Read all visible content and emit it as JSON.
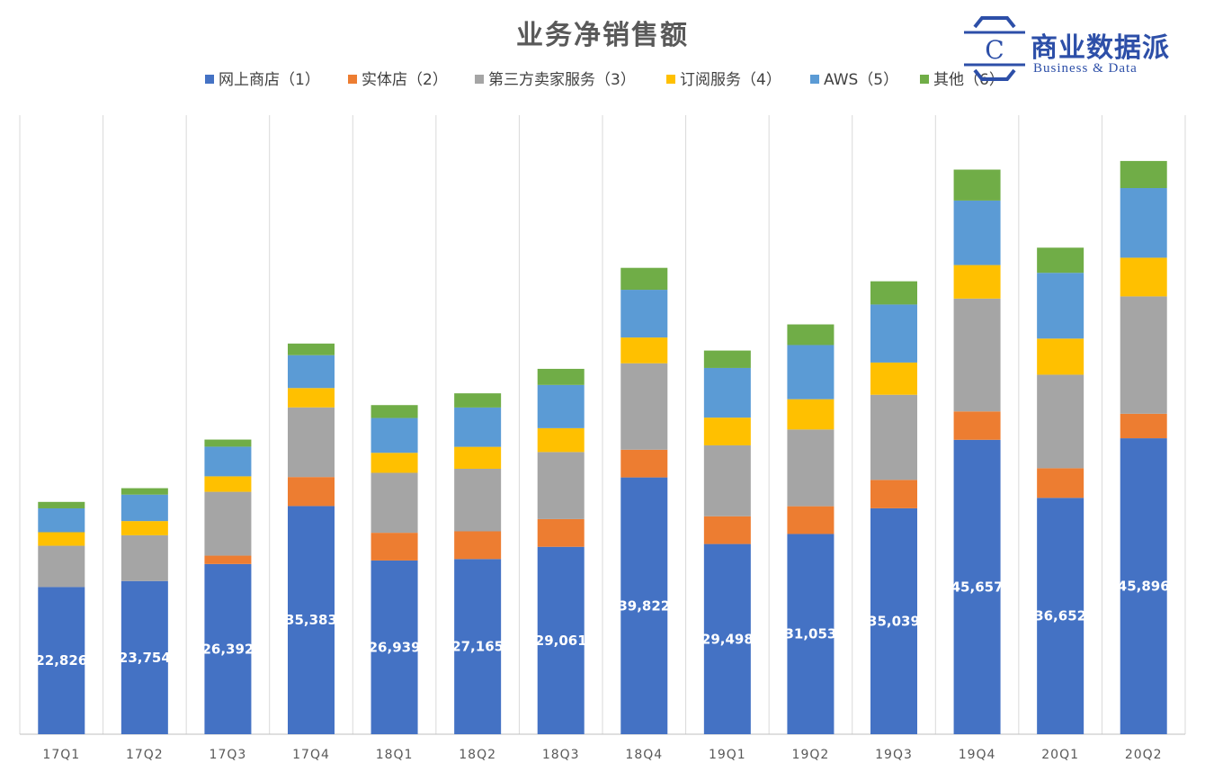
{
  "logo": {
    "name": "商业数据派",
    "tagline": "Business & Data",
    "mark": "C"
  },
  "chart_data": {
    "type": "bar",
    "stacked": true,
    "title": "业务净销售额",
    "xlabel": "",
    "ylabel": "",
    "ylim": [
      0,
      96000
    ],
    "grid": "vertical category separators",
    "legend_position": "top",
    "categories": [
      "17Q1",
      "17Q2",
      "17Q3",
      "17Q4",
      "18Q1",
      "18Q2",
      "18Q3",
      "18Q4",
      "19Q1",
      "19Q2",
      "19Q3",
      "19Q4",
      "20Q1",
      "20Q2"
    ],
    "series": [
      {
        "name": "网上商店（1）",
        "color": "#4472C4",
        "values": [
          22826,
          23754,
          26392,
          35383,
          26939,
          27165,
          29061,
          39822,
          29498,
          31053,
          35039,
          45657,
          36652,
          45896
        ],
        "labels": [
          "22,826",
          "23,754",
          "26,392",
          "35,383",
          "26,939",
          "27,165",
          "29,061",
          "39,822",
          "29,498",
          "31,053",
          "35,039",
          "45,657",
          "36,652",
          "45,896"
        ]
      },
      {
        "name": "实体店（2）",
        "color": "#ED7D31",
        "values": [
          0,
          0,
          1300,
          4500,
          4300,
          4300,
          4300,
          4300,
          4300,
          4300,
          4400,
          4400,
          4600,
          3800
        ]
      },
      {
        "name": "第三方卖家服务（3）",
        "color": "#A5A5A5",
        "values": [
          6400,
          7100,
          9900,
          10800,
          9300,
          9700,
          10400,
          13400,
          11000,
          11900,
          13200,
          17500,
          14500,
          18200
        ]
      },
      {
        "name": "订阅服务（4）",
        "color": "#FFC000",
        "values": [
          2100,
          2200,
          2400,
          3000,
          3100,
          3400,
          3700,
          4000,
          4300,
          4700,
          5000,
          5200,
          5600,
          6000
        ]
      },
      {
        "name": "AWS（5）",
        "color": "#5B9BD5",
        "values": [
          3700,
          4100,
          4600,
          5100,
          5400,
          6100,
          6700,
          7400,
          7700,
          8400,
          9000,
          10000,
          10200,
          10800
        ]
      },
      {
        "name": "其他（6）",
        "color": "#70AD47",
        "values": [
          1000,
          1000,
          1100,
          1800,
          2000,
          2200,
          2500,
          3400,
          2700,
          3200,
          3600,
          4800,
          3900,
          4200
        ]
      }
    ]
  }
}
